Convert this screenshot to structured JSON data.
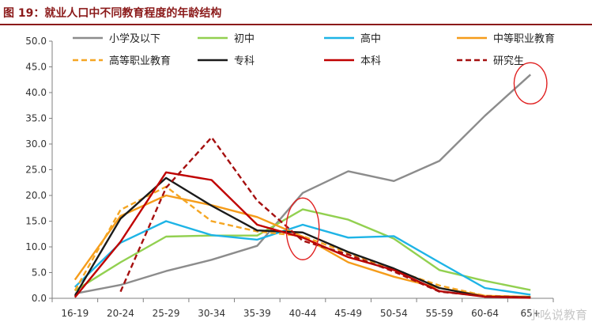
{
  "title": "图 19：就业人口中不同教育程度的年龄结构",
  "watermark": "小吆说教育",
  "chart_data": {
    "type": "line",
    "categories": [
      "16-19",
      "20-24",
      "25-29",
      "30-34",
      "35-39",
      "40-44",
      "45-49",
      "50-54",
      "55-59",
      "60-64",
      "65+"
    ],
    "ylim": [
      0,
      50
    ],
    "yticks": [
      "0.0",
      "5.0",
      "10.0",
      "15.0",
      "20.0",
      "25.0",
      "30.0",
      "35.0",
      "40.0",
      "45.0",
      "50.0"
    ],
    "legend_position": "top",
    "grid": false,
    "series": [
      {
        "name": "小学及以下",
        "color": "#8c8c8c",
        "dash": "solid",
        "values": [
          0.9,
          2.6,
          5.3,
          7.5,
          10.2,
          20.5,
          24.7,
          22.8,
          26.7,
          35.5,
          43.5
        ]
      },
      {
        "name": "初中",
        "color": "#92d050",
        "dash": "solid",
        "values": [
          1.5,
          7.0,
          12.0,
          12.2,
          12.2,
          17.3,
          15.3,
          11.6,
          5.5,
          3.4,
          1.6
        ]
      },
      {
        "name": "高中",
        "color": "#1eb4e6",
        "dash": "solid",
        "values": [
          2.2,
          10.8,
          15.0,
          12.3,
          11.4,
          14.3,
          11.8,
          12.1,
          7.0,
          2.0,
          0.7
        ]
      },
      {
        "name": "中等职业教育",
        "color": "#f59c1a",
        "dash": "solid",
        "values": [
          3.6,
          16.0,
          20.0,
          18.1,
          15.8,
          12.0,
          7.0,
          4.2,
          2.0,
          0.5,
          0.3
        ]
      },
      {
        "name": "高等职业教育",
        "color": "#f5a623",
        "dash": "dashed",
        "values": [
          1.5,
          17.2,
          21.7,
          15.0,
          13.0,
          12.1,
          8.8,
          5.5,
          2.5,
          0.5,
          0.3
        ]
      },
      {
        "name": "专科",
        "color": "#1a1a1a",
        "dash": "solid",
        "values": [
          0.5,
          15.5,
          23.4,
          18.0,
          13.2,
          12.8,
          9.0,
          5.8,
          2.0,
          0.3,
          0.2
        ]
      },
      {
        "name": "本科",
        "color": "#c00000",
        "dash": "solid",
        "values": [
          0.2,
          11.0,
          24.5,
          23.0,
          14.3,
          11.8,
          8.0,
          5.5,
          1.4,
          0.3,
          0.1
        ]
      },
      {
        "name": "研究生",
        "color": "#a50f0f",
        "dash": "dashed",
        "values": [
          null,
          1.3,
          21.5,
          31.3,
          19.0,
          11.2,
          8.5,
          5.2,
          1.3,
          0.4,
          0.2
        ]
      }
    ],
    "annotations": [
      {
        "type": "ellipse",
        "category": "40-44",
        "y_center": 13.5,
        "y_span": 12
      },
      {
        "type": "ellipse",
        "category": "65+",
        "y_center": 41.8,
        "y_span": 8
      }
    ]
  }
}
